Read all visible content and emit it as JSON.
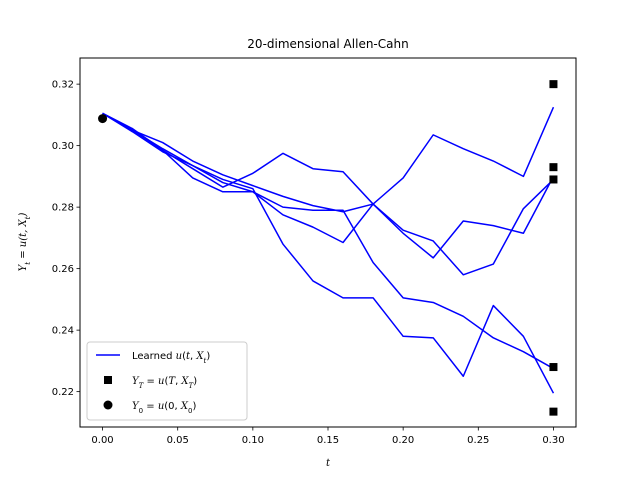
{
  "chart_data": {
    "type": "line",
    "title": "20-dimensional Allen-Cahn",
    "xlabel": "t",
    "ylabel": "Y_t = u(t, X_t)",
    "xlim": [
      -0.015,
      0.315
    ],
    "ylim": [
      0.2085,
      0.3285
    ],
    "x_ticks": [
      0.0,
      0.05,
      0.1,
      0.15,
      0.2,
      0.25,
      0.3
    ],
    "x_tick_labels": [
      "0.00",
      "0.05",
      "0.10",
      "0.15",
      "0.20",
      "0.25",
      "0.30"
    ],
    "y_ticks": [
      0.22,
      0.24,
      0.26,
      0.28,
      0.3,
      0.32
    ],
    "y_tick_labels": [
      "0.22",
      "0.24",
      "0.26",
      "0.28",
      "0.30",
      "0.32"
    ],
    "x": [
      0.0,
      0.02,
      0.04,
      0.06,
      0.08,
      0.1,
      0.12,
      0.14,
      0.16,
      0.18,
      0.2,
      0.22,
      0.24,
      0.26,
      0.28,
      0.3
    ],
    "series": [
      {
        "values": [
          0.3105,
          0.305,
          0.2985,
          0.2925,
          0.2865,
          0.291,
          0.2975,
          0.2925,
          0.2915,
          0.281,
          0.2895,
          0.3035,
          0.299,
          0.295,
          0.29,
          0.3125
        ]
      },
      {
        "values": [
          0.3105,
          0.3055,
          0.2985,
          0.2895,
          0.285,
          0.285,
          0.2775,
          0.2735,
          0.2685,
          0.281,
          0.2725,
          0.269,
          0.258,
          0.2615,
          0.2795,
          0.289
        ]
      },
      {
        "values": [
          0.3105,
          0.305,
          0.301,
          0.295,
          0.2905,
          0.287,
          0.2835,
          0.2805,
          0.2785,
          0.281,
          0.2715,
          0.2635,
          0.2755,
          0.274,
          0.2715,
          0.29
        ]
      },
      {
        "values": [
          0.3105,
          0.3045,
          0.298,
          0.2935,
          0.289,
          0.286,
          0.268,
          0.256,
          0.2505,
          0.2505,
          0.238,
          0.2375,
          0.225,
          0.248,
          0.238,
          0.2195
        ]
      },
      {
        "values": [
          0.3105,
          0.305,
          0.299,
          0.2935,
          0.288,
          0.285,
          0.28,
          0.279,
          0.279,
          0.262,
          0.2505,
          0.249,
          0.2445,
          0.2375,
          0.233,
          0.2275
        ]
      }
    ],
    "terminal_points": {
      "x": 0.3,
      "values": [
        0.32,
        0.293,
        0.289,
        0.228,
        0.2135
      ]
    },
    "initial_point": {
      "x": 0.0,
      "value": 0.3088
    },
    "line_color": "#0000ff",
    "marker_color": "#000000",
    "grid": false,
    "legend": {
      "placement": "lower-left",
      "entries": [
        {
          "prefix": "Learned ",
          "math": "u(t, X_t)",
          "marker": "line"
        },
        {
          "prefix": "",
          "math": "Y_T = u(T, X_T)",
          "marker": "square"
        },
        {
          "prefix": "",
          "math": "Y_0 = u(0, X_0)",
          "marker": "circle"
        }
      ]
    }
  }
}
